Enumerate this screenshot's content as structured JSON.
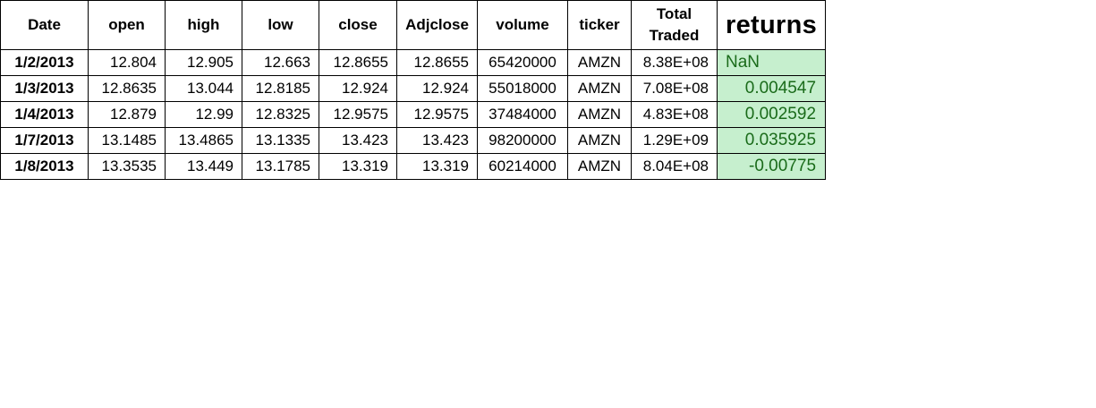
{
  "table": {
    "headers": {
      "date": "Date",
      "open": "open",
      "high": "high",
      "low": "low",
      "close": "close",
      "adjclose": "Adjclose",
      "volume": "volume",
      "ticker": "ticker",
      "total_traded": "Total Traded",
      "returns": "returns"
    },
    "rows": [
      {
        "date": "1/2/2013",
        "open": "12.804",
        "high": "12.905",
        "low": "12.663",
        "close": "12.8655",
        "adjclose": "12.8655",
        "volume": "65420000",
        "ticker": "AMZN",
        "total_traded": "8.38E+08",
        "returns": "NaN"
      },
      {
        "date": "1/3/2013",
        "open": "12.8635",
        "high": "13.044",
        "low": "12.8185",
        "close": "12.924",
        "adjclose": "12.924",
        "volume": "55018000",
        "ticker": "AMZN",
        "total_traded": "7.08E+08",
        "returns": "0.004547"
      },
      {
        "date": "1/4/2013",
        "open": "12.879",
        "high": "12.99",
        "low": "12.8325",
        "close": "12.9575",
        "adjclose": "12.9575",
        "volume": "37484000",
        "ticker": "AMZN",
        "total_traded": "4.83E+08",
        "returns": "0.002592"
      },
      {
        "date": "1/7/2013",
        "open": "13.1485",
        "high": "13.4865",
        "low": "13.1335",
        "close": "13.423",
        "adjclose": "13.423",
        "volume": "98200000",
        "ticker": "AMZN",
        "total_traded": "1.29E+09",
        "returns": "0.035925"
      },
      {
        "date": "1/8/2013",
        "open": "13.3535",
        "high": "13.449",
        "low": "13.1785",
        "close": "13.319",
        "adjclose": "13.319",
        "volume": "60214000",
        "ticker": "AMZN",
        "total_traded": "8.04E+08",
        "returns": "-0.00775"
      }
    ],
    "colors": {
      "returns_fill": "#c6efce",
      "returns_text": "#1a6b1a",
      "border": "#000000"
    }
  }
}
